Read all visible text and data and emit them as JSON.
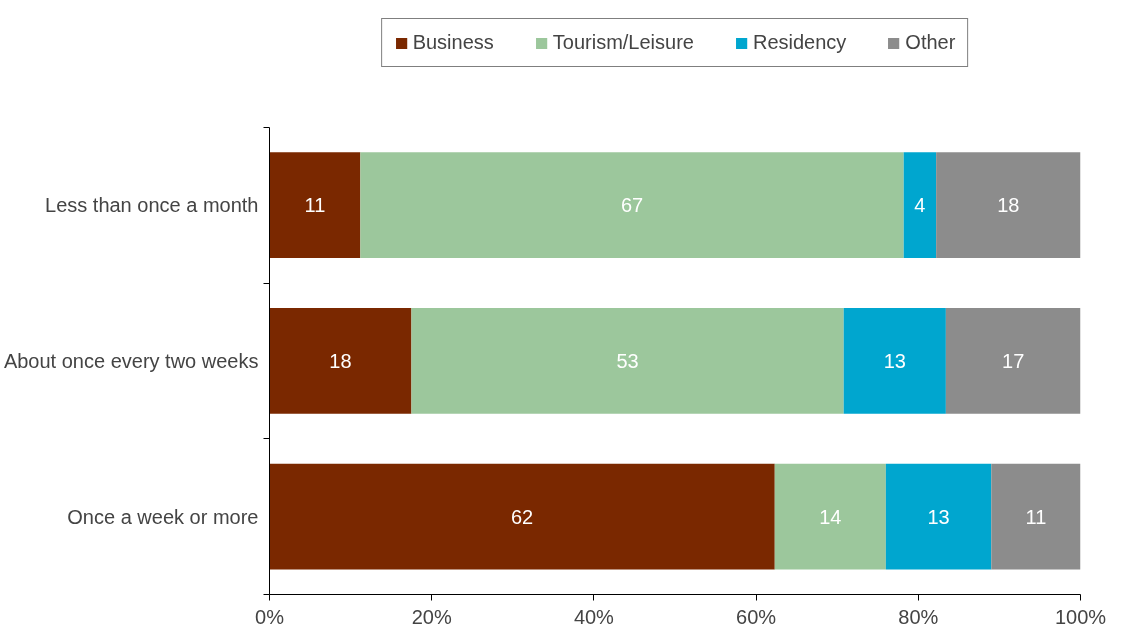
{
  "chart_data": {
    "type": "bar",
    "orientation": "horizontal",
    "stacked": true,
    "categories": [
      "Less than once a month",
      "About once every two weeks",
      "Once a week or more"
    ],
    "series": [
      {
        "name": "Business",
        "color": "#7a2800",
        "values": [
          11.2,
          17.5,
          62.3
        ],
        "value_labels": [
          "11",
          "18",
          "62"
        ]
      },
      {
        "name": "Tourism/Leisure",
        "color": "#9cc79c",
        "values": [
          67.0,
          53.3,
          13.7
        ],
        "value_labels": [
          "67",
          "53",
          "14"
        ]
      },
      {
        "name": "Residency",
        "color": "#00a6cf",
        "values": [
          4.0,
          12.6,
          13.0
        ],
        "value_labels": [
          "4",
          "13",
          "13"
        ]
      },
      {
        "name": "Other",
        "color": "#8c8c8c",
        "values": [
          17.8,
          16.6,
          11.0
        ],
        "value_labels": [
          "18",
          "17",
          "11"
        ]
      }
    ],
    "xlim": [
      0,
      100
    ],
    "xticks": [
      {
        "value": 0,
        "label": "0%"
      },
      {
        "value": 20,
        "label": "20%"
      },
      {
        "value": 40,
        "label": "40%"
      },
      {
        "value": 60,
        "label": "60%"
      },
      {
        "value": 80,
        "label": "80%"
      },
      {
        "value": 100,
        "label": "100%"
      }
    ],
    "grid": false,
    "legend": "top"
  }
}
